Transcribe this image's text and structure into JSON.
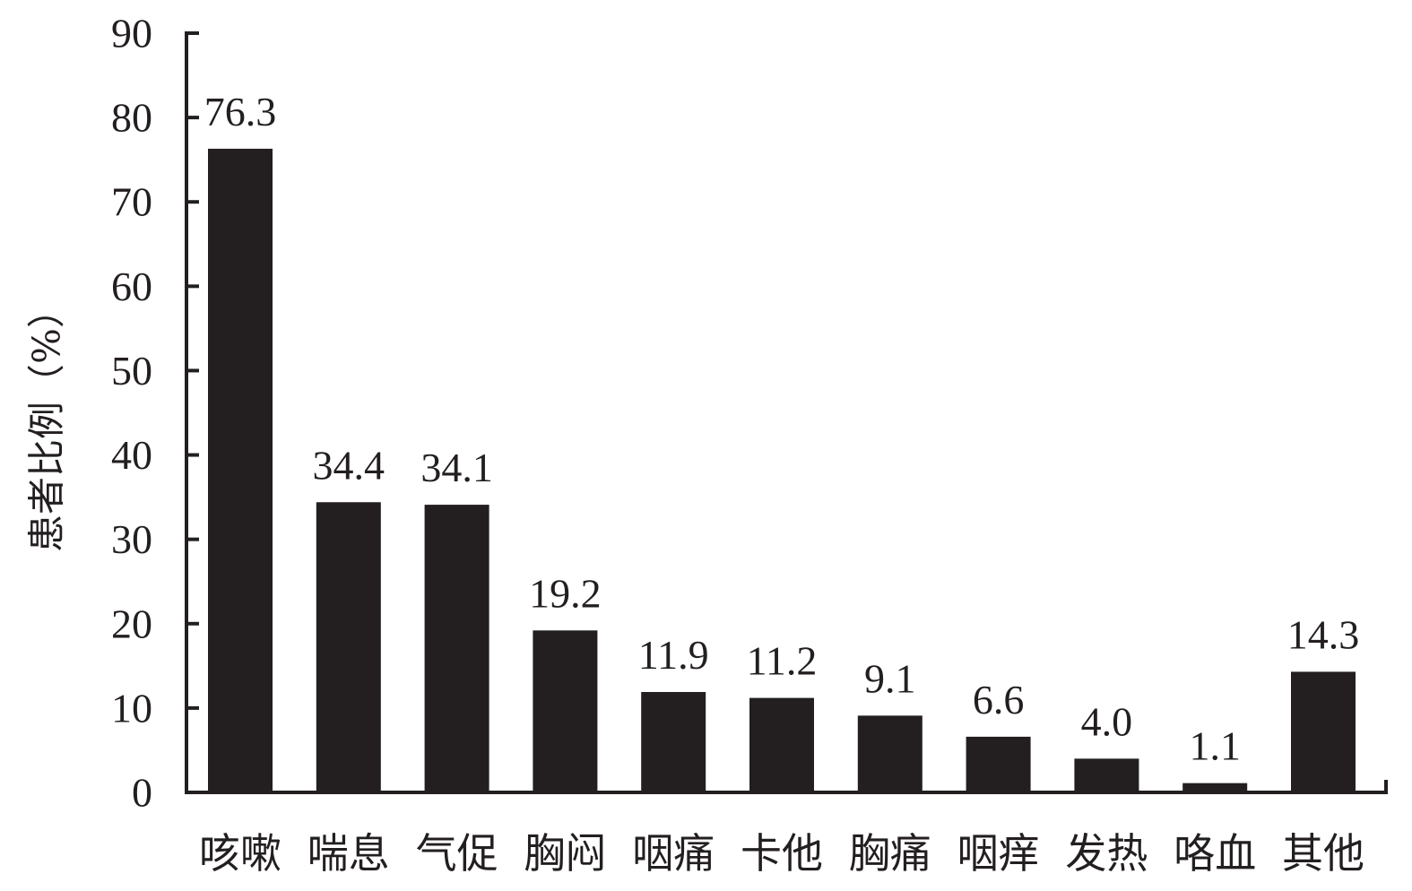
{
  "chart_data": {
    "type": "bar",
    "ylabel": "患者比例（%）",
    "ylim": [
      0,
      90
    ],
    "y_ticks": [
      0,
      10,
      20,
      30,
      40,
      50,
      60,
      70,
      80,
      90
    ],
    "categories": [
      "咳嗽",
      "喘息",
      "气促",
      "胸闷",
      "咽痛",
      "卡他",
      "胸痛",
      "咽痒",
      "发热",
      "咯血",
      "其他"
    ],
    "values": [
      76.3,
      34.4,
      34.1,
      19.2,
      11.9,
      11.2,
      9.1,
      6.6,
      4.0,
      1.1,
      14.3
    ],
    "value_labels": [
      "76.3",
      "34.4",
      "34.1",
      "19.2",
      "11.9",
      "11.2",
      "9.1",
      "6.6",
      "4.0",
      "1.1",
      "14.3"
    ],
    "grid": false,
    "legend": "none",
    "bar_color": "#231f20",
    "axis_color": "#231f20"
  }
}
